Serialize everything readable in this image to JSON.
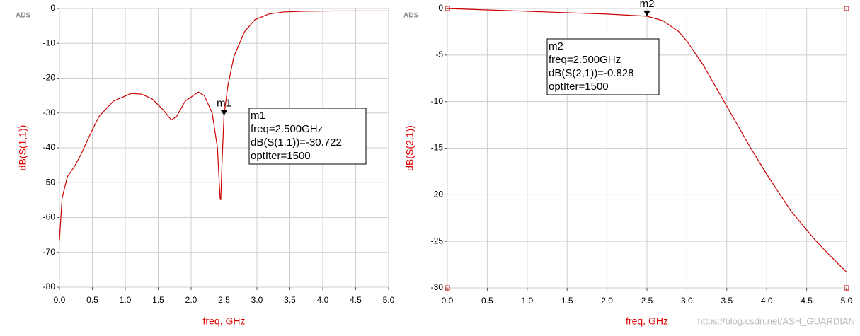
{
  "chart_data": [
    {
      "type": "line",
      "logo": "ADS",
      "x_label": "freq, GHz",
      "y_label": "dB(S(1,1))",
      "color": "#cc0000",
      "x": [
        0,
        0.04,
        0.12,
        0.23,
        0.33,
        0.44,
        0.6,
        0.82,
        1.09,
        1.25,
        1.41,
        1.57,
        1.7,
        1.78,
        1.91,
        2.11,
        2.2,
        2.32,
        2.4,
        2.44,
        2.45,
        2.47,
        2.5,
        2.56,
        2.65,
        2.81,
        2.97,
        3.18,
        3.4,
        3.72,
        4.2,
        5.0
      ],
      "values": [
        -66.5,
        -54.4,
        -48.3,
        -45.3,
        -41.8,
        -37.2,
        -31,
        -26.6,
        -24.4,
        -24.6,
        -26,
        -29,
        -32,
        -31,
        -26.6,
        -24,
        -25,
        -30,
        -40,
        -54.5,
        -55,
        -44,
        -30.722,
        -22,
        -13.8,
        -6.7,
        -3.2,
        -1.6,
        -1,
        -0.8,
        -0.7,
        -0.7
      ],
      "xlim": [
        0,
        5
      ],
      "ylim": [
        -80,
        0
      ],
      "xticks": [
        {
          "value": 0,
          "label": "0.0"
        },
        0.5,
        {
          "value": 1,
          "label": "1.0"
        },
        1.5,
        {
          "value": 2,
          "label": "2.0"
        },
        2.5,
        {
          "value": 3,
          "label": "3.0"
        },
        3.5,
        {
          "value": 4,
          "label": "4.0"
        },
        4.5,
        {
          "value": 5,
          "label": "5.0"
        }
      ],
      "yticks": [
        0,
        -10,
        -20,
        -30,
        -40,
        -50,
        -60,
        -70,
        -80
      ],
      "grid": true,
      "marker": {
        "name": "m1",
        "x": 2.5,
        "y": -30.722,
        "lines": [
          "freq=2.500GHz",
          "dB(S(1,1))=-30.722",
          "optIter=1500"
        ]
      }
    },
    {
      "type": "line",
      "logo": "ADS",
      "x_label": "freq, GHz",
      "y_label": "dB(S(2,1))",
      "color": "#cc0000",
      "x": [
        0,
        0.5,
        1,
        1.5,
        2,
        2.5,
        2.7,
        2.9,
        3.0,
        3.2,
        3.5,
        3.8,
        4.0,
        4.3,
        4.6,
        4.8,
        5.0
      ],
      "values": [
        0,
        -0.15,
        -0.3,
        -0.45,
        -0.6,
        -0.828,
        -1.3,
        -2.5,
        -3.5,
        -6,
        -10.5,
        -15,
        -17.8,
        -21.7,
        -24.8,
        -26.6,
        -28.3
      ],
      "xlim": [
        0,
        5
      ],
      "ylim": [
        -30,
        0
      ],
      "xticks": [
        {
          "value": 0,
          "label": "0.0"
        },
        0.5,
        {
          "value": 1,
          "label": "1.0"
        },
        1.5,
        {
          "value": 2,
          "label": "2.0"
        },
        2.5,
        {
          "value": 3,
          "label": "3.0"
        },
        3.5,
        {
          "value": 4,
          "label": "4.0"
        },
        4.5,
        {
          "value": 5,
          "label": "5.0"
        }
      ],
      "yticks": [
        0,
        -5,
        -10,
        -15,
        -20,
        -25,
        -30
      ],
      "grid": true,
      "marker": {
        "name": "m2",
        "x": 2.5,
        "y": -0.828,
        "lines": [
          "freq=2.500GHz",
          "dB(S(2,1))=-0.828",
          "optIter=1500"
        ]
      },
      "watermark": "https://blog.csdn.net/ASH_GUARDIAN"
    }
  ]
}
